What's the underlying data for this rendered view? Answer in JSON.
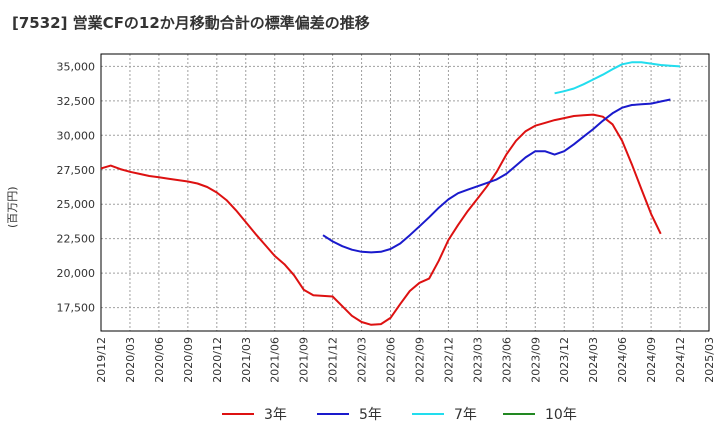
{
  "chart_data": {
    "type": "line",
    "title": "[7532]  営業CFの12か月移動合計の標準偏差の推移",
    "ylabel": "(百万円)",
    "xlabel": "",
    "ylim": [
      15800,
      35900
    ],
    "yticks": [
      17500,
      20000,
      22500,
      25000,
      27500,
      30000,
      32500,
      35000
    ],
    "ytick_labels": [
      "17,500",
      "20,000",
      "22,500",
      "25,000",
      "27,500",
      "30,000",
      "32,500",
      "35,000"
    ],
    "xticks": [
      "2019/12",
      "2020/03",
      "2020/06",
      "2020/09",
      "2020/12",
      "2021/03",
      "2021/06",
      "2021/09",
      "2021/12",
      "2022/03",
      "2022/06",
      "2022/09",
      "2022/12",
      "2023/03",
      "2023/06",
      "2023/09",
      "2023/12",
      "2024/03",
      "2024/06",
      "2024/09",
      "2024/12",
      "2025/03"
    ],
    "grid": true,
    "legend_position": "bottom",
    "series": [
      {
        "name": "3年",
        "color": "#dd1111",
        "start": "2019/12",
        "values": [
          27600,
          27800,
          27550,
          27350,
          27200,
          27050,
          26950,
          26850,
          26750,
          26650,
          26500,
          26250,
          25850,
          25300,
          24550,
          23700,
          22850,
          22050,
          21250,
          20650,
          19850,
          18800,
          18400,
          18350,
          18300,
          17600,
          16900,
          16450,
          16250,
          16300,
          16750,
          17750,
          18700,
          19300,
          19600,
          20900,
          22400,
          23500,
          24500,
          25400,
          26300,
          27350,
          28600,
          29600,
          30300,
          30700,
          30900,
          31100,
          31250,
          31400,
          31450,
          31500,
          31350,
          30800,
          29600,
          27900,
          26100,
          24300,
          22850
        ]
      },
      {
        "name": "5年",
        "color": "#1a1acc",
        "start": "2021/11",
        "values": [
          22750,
          22300,
          21950,
          21700,
          21550,
          21500,
          21550,
          21750,
          22150,
          22750,
          23400,
          24050,
          24750,
          25350,
          25800,
          26050,
          26300,
          26550,
          26800,
          27200,
          27800,
          28400,
          28850,
          28850,
          28600,
          28850,
          29350,
          29900,
          30450,
          31050,
          31600,
          32000,
          32200,
          32250,
          32300,
          32450,
          32600
        ]
      },
      {
        "name": "7年",
        "color": "#22ddee",
        "start": "2023/11",
        "values": [
          33050,
          33200,
          33400,
          33700,
          34050,
          34400,
          34800,
          35150,
          35300,
          35300,
          35200,
          35100,
          35050,
          35000
        ]
      },
      {
        "name": "10年",
        "color": "#228822",
        "start": "2019/12",
        "values": []
      }
    ]
  }
}
